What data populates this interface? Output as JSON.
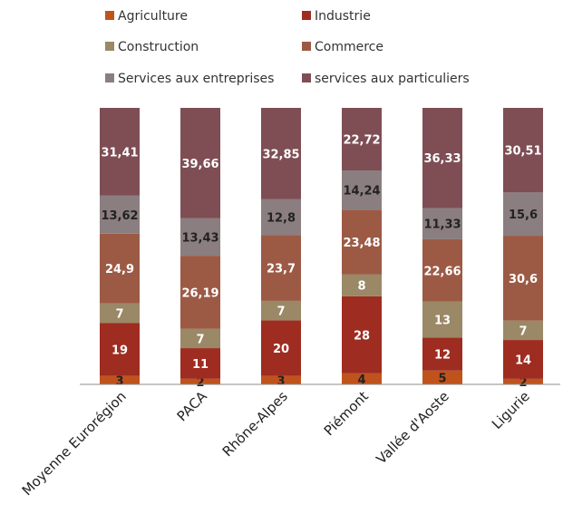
{
  "chart_data": {
    "type": "bar",
    "stacked": true,
    "legend_position": "top",
    "categories": [
      "Moyenne Eurorégion",
      "PACA",
      "Rhône-Alpes",
      "Piémont",
      "Vallée d'Aoste",
      "Ligurie"
    ],
    "series": [
      {
        "name": "Agriculture",
        "color": "#C0531C",
        "label_color": "#222222",
        "values": [
          3,
          2,
          3,
          4,
          5,
          2
        ],
        "labels": [
          "3",
          "2",
          "3",
          "4",
          "5",
          "2"
        ]
      },
      {
        "name": "Industrie",
        "color": "#9E2C20",
        "label_color": "#ffffff",
        "values": [
          19,
          11,
          20,
          28,
          12,
          14
        ],
        "labels": [
          "19",
          "11",
          "20",
          "28",
          "12",
          "14"
        ]
      },
      {
        "name": "Construction",
        "color": "#9A8866",
        "label_color": "#ffffff",
        "values": [
          7,
          7,
          7,
          8,
          13,
          7
        ],
        "labels": [
          "7",
          "7",
          "7",
          "8",
          "13",
          "7"
        ]
      },
      {
        "name": "Commerce",
        "color": "#9C5A45",
        "label_color": "#ffffff",
        "values": [
          24.9,
          26.19,
          23.7,
          23.48,
          22.66,
          30.6
        ],
        "labels": [
          "24,9",
          "26,19",
          "23,7",
          "23,48",
          "22,66",
          "30,6"
        ]
      },
      {
        "name": "Services aux entreprises",
        "color": "#8A7E80",
        "label_color": "#222222",
        "values": [
          13.62,
          13.43,
          12.8,
          14.24,
          11.33,
          15.6
        ],
        "labels": [
          "13,62",
          "13,43",
          "12,8",
          "14,24",
          "11,33",
          "15,6"
        ]
      },
      {
        "name": "services aux particuliers",
        "color": "#7E4E54",
        "label_color": "#ffffff",
        "values": [
          31.41,
          39.66,
          32.85,
          22.72,
          36.33,
          30.51
        ],
        "labels": [
          "31,41",
          "39,66",
          "32,85",
          "22,72",
          "36,33",
          "30,51"
        ]
      }
    ],
    "title": "",
    "xlabel": "",
    "ylabel": ""
  }
}
